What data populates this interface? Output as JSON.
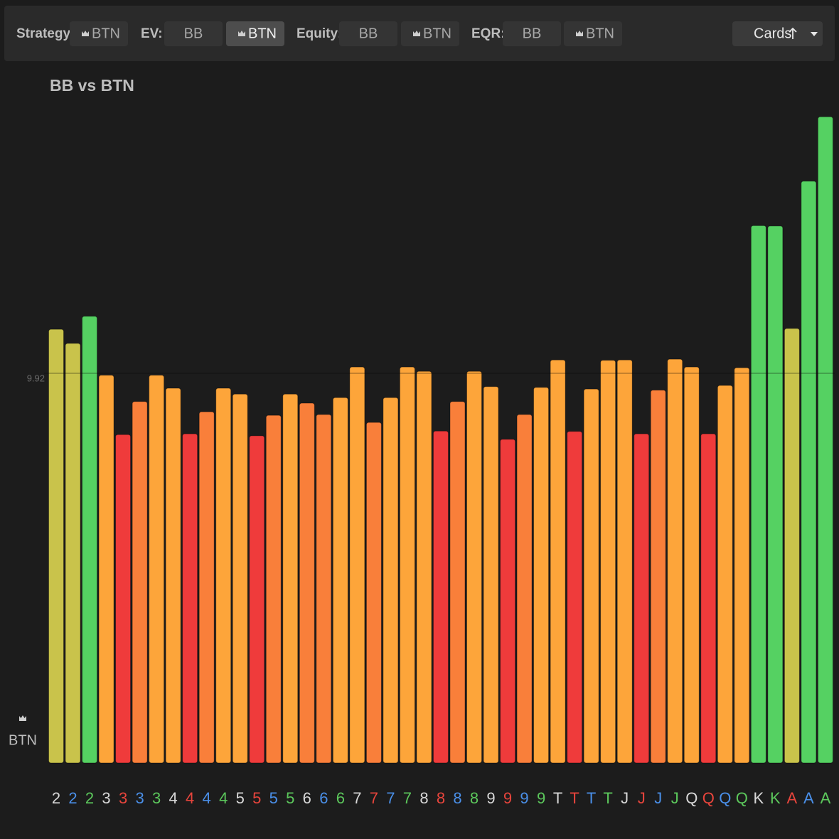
{
  "toolbar": {
    "groups": [
      {
        "label": "Strategy:",
        "buttons": [
          {
            "text": "BTN",
            "crown": true
          }
        ]
      },
      {
        "label": "EV:",
        "buttons": [
          {
            "text": "BB"
          },
          {
            "text": "BTN",
            "crown": true,
            "active": true
          }
        ]
      },
      {
        "label": "Equity:",
        "buttons": [
          {
            "text": "BB"
          },
          {
            "text": "BTN",
            "crown": true
          }
        ]
      },
      {
        "label": "EQR:",
        "buttons": [
          {
            "text": "BB"
          },
          {
            "text": "BTN",
            "crown": true
          }
        ]
      }
    ],
    "sort": "Cards"
  },
  "chart_data": {
    "type": "bar",
    "title": "BB vs BTN",
    "ylabel": "BTN",
    "categories": [
      "2",
      "2",
      "2",
      "3",
      "3",
      "3",
      "3",
      "4",
      "4",
      "4",
      "4",
      "5",
      "5",
      "5",
      "5",
      "6",
      "6",
      "6",
      "7",
      "7",
      "7",
      "7",
      "8",
      "8",
      "8",
      "8",
      "9",
      "9",
      "9",
      "9",
      "T",
      "T",
      "T",
      "T",
      "J",
      "J",
      "J",
      "J",
      "Q",
      "Q",
      "Q",
      "Q",
      "K",
      "K",
      "A",
      "A",
      "A"
    ],
    "label_colors": [
      "#d8d8d8",
      "#4a8fe8",
      "#5cc85c",
      "#d8d8d8",
      "#e8453c",
      "#4a8fe8",
      "#5cc85c",
      "#d8d8d8",
      "#e8453c",
      "#4a8fe8",
      "#5cc85c",
      "#d8d8d8",
      "#e8453c",
      "#4a8fe8",
      "#5cc85c",
      "#d8d8d8",
      "#4a8fe8",
      "#5cc85c",
      "#d8d8d8",
      "#e8453c",
      "#4a8fe8",
      "#5cc85c",
      "#d8d8d8",
      "#e8453c",
      "#4a8fe8",
      "#5cc85c",
      "#d8d8d8",
      "#e8453c",
      "#4a8fe8",
      "#5cc85c",
      "#d8d8d8",
      "#e8453c",
      "#4a8fe8",
      "#5cc85c",
      "#d8d8d8",
      "#e8453c",
      "#4a8fe8",
      "#5cc85c",
      "#d8d8d8",
      "#e8453c",
      "#4a8fe8",
      "#5cc85c",
      "#d8d8d8",
      "#5cc85c",
      "#e8453c",
      "#4a8fe8",
      "#5cc85c"
    ],
    "values": [
      11.04,
      10.68,
      11.37,
      9.87,
      8.36,
      9.2,
      9.87,
      9.54,
      8.38,
      8.94,
      9.54,
      9.39,
      8.33,
      8.85,
      9.39,
      9.16,
      8.87,
      9.3,
      10.08,
      8.67,
      9.3,
      10.08,
      9.97,
      8.45,
      9.2,
      9.97,
      9.58,
      8.24,
      8.87,
      9.56,
      10.26,
      8.44,
      9.52,
      10.25,
      10.26,
      8.38,
      9.49,
      10.28,
      10.08,
      8.38,
      9.61,
      10.06,
      13.68,
      13.67,
      11.06,
      14.81,
      16.45
    ],
    "colors": [
      "#c9c34b",
      "#c9c34b",
      "#55d162",
      "#fda53a",
      "#ef3b3b",
      "#f97f3a",
      "#fda53a",
      "#fda53a",
      "#ef3b3b",
      "#f97f3a",
      "#fda53a",
      "#fda53a",
      "#ef3b3b",
      "#f97f3a",
      "#fda53a",
      "#f97f3a",
      "#f97f3a",
      "#fda53a",
      "#fda53a",
      "#f97f3a",
      "#fda53a",
      "#fda53a",
      "#fda53a",
      "#ef3b3b",
      "#f97f3a",
      "#fda53a",
      "#fda53a",
      "#ef3b3b",
      "#f97f3a",
      "#fda53a",
      "#fda53a",
      "#ef3b3b",
      "#fda53a",
      "#fda53a",
      "#fda53a",
      "#ef3b3b",
      "#f97f3a",
      "#fda53a",
      "#fda53a",
      "#ef3b3b",
      "#fda53a",
      "#fda53a",
      "#55d162",
      "#55d162",
      "#c9c34b",
      "#55d162",
      "#55d162"
    ],
    "ylim": [
      0,
      16.7
    ],
    "yticks": [
      9.92
    ],
    "grid": true
  }
}
